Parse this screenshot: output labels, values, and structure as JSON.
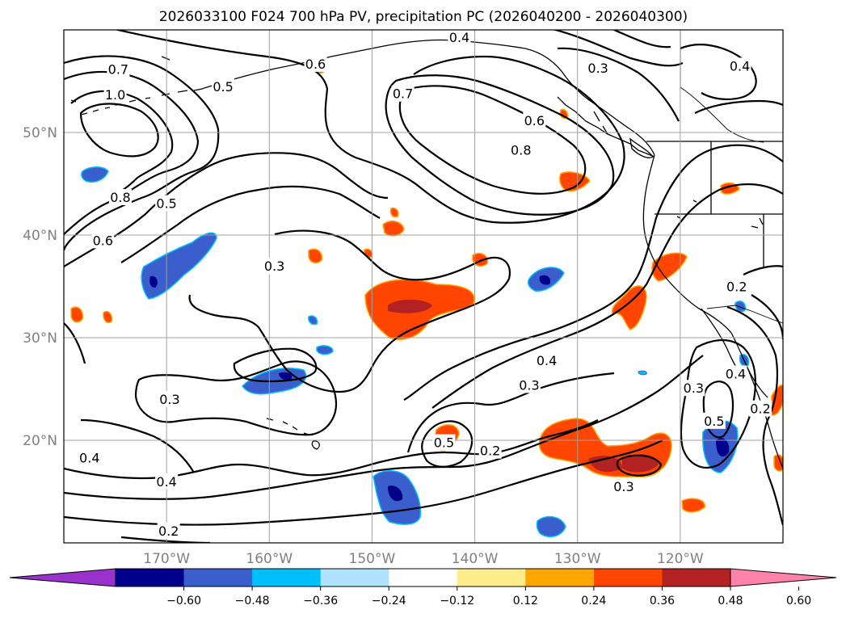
{
  "title": "2026033100 F024 700 hPa PV, precipitation PC (2026040200 - 2026040300)",
  "map": {
    "lon_range": [
      -180,
      -110
    ],
    "lat_range": [
      10,
      60
    ],
    "lat_ticks": [
      {
        "value": 50,
        "label": "50°N"
      },
      {
        "value": 40,
        "label": "40°N"
      },
      {
        "value": 30,
        "label": "30°N"
      },
      {
        "value": 20,
        "label": "20°N"
      }
    ],
    "lon_ticks": [
      {
        "value": -170,
        "label": "170°W"
      },
      {
        "value": -160,
        "label": "160°W"
      },
      {
        "value": -150,
        "label": "150°W"
      },
      {
        "value": -140,
        "label": "140°W"
      },
      {
        "value": -130,
        "label": "130°W"
      },
      {
        "value": -120,
        "label": "120°W"
      }
    ],
    "grid": true,
    "tick_label_color": "#808080"
  },
  "contour_labels": [
    {
      "text": "0.4",
      "lon": -141.5,
      "lat": 59.3
    },
    {
      "text": "0.6",
      "lon": -155.5,
      "lat": 56.7
    },
    {
      "text": "0.3",
      "lon": -128.0,
      "lat": 56.3
    },
    {
      "text": "0.4",
      "lon": -114.2,
      "lat": 56.5
    },
    {
      "text": "0.7",
      "lon": -174.7,
      "lat": 56.2
    },
    {
      "text": "0.5",
      "lon": -164.5,
      "lat": 54.5
    },
    {
      "text": "1.0",
      "lon": -175.0,
      "lat": 53.7
    },
    {
      "text": "0.7",
      "lon": -147.0,
      "lat": 53.8
    },
    {
      "text": "0.6",
      "lon": -134.2,
      "lat": 51.2
    },
    {
      "text": "0.8",
      "lon": -135.5,
      "lat": 48.3
    },
    {
      "text": "0.8",
      "lon": -174.5,
      "lat": 43.7
    },
    {
      "text": "0.5",
      "lon": -170.0,
      "lat": 43.1
    },
    {
      "text": "0.6",
      "lon": -176.2,
      "lat": 39.5
    },
    {
      "text": "0.3",
      "lon": -159.5,
      "lat": 37.0
    },
    {
      "text": "0.2",
      "lon": -114.5,
      "lat": 35.0
    },
    {
      "text": "0.4",
      "lon": -133.0,
      "lat": 27.8
    },
    {
      "text": "0.3",
      "lon": -134.7,
      "lat": 25.4
    },
    {
      "text": "0.3",
      "lon": -169.7,
      "lat": 24.0
    },
    {
      "text": "0.3",
      "lon": -118.7,
      "lat": 25.1
    },
    {
      "text": "0.4",
      "lon": -114.6,
      "lat": 26.5
    },
    {
      "text": "0.5",
      "lon": -116.7,
      "lat": 21.9
    },
    {
      "text": "0.2",
      "lon": -112.2,
      "lat": 23.1
    },
    {
      "text": "0.5",
      "lon": -143.0,
      "lat": 19.8
    },
    {
      "text": "0.2",
      "lon": -138.5,
      "lat": 19.0
    },
    {
      "text": "0.4",
      "lon": -177.5,
      "lat": 18.3
    },
    {
      "text": "0.4",
      "lon": -170.0,
      "lat": 16.0
    },
    {
      "text": "0.3",
      "lon": -125.5,
      "lat": 15.5
    },
    {
      "text": "0.2",
      "lon": -169.8,
      "lat": 11.2
    }
  ],
  "colorbar": {
    "colors": [
      "#9932cc",
      "#00008b",
      "#3a5fcd",
      "#00bfff",
      "#b0e2ff",
      "#ffffff",
      "#ffec8b",
      "#ffa500",
      "#ff4500",
      "#b22222",
      "#ff82ab"
    ],
    "tick_labels": [
      "−0.60",
      "−0.48",
      "−0.36",
      "−0.24",
      "−0.12",
      "0.12",
      "0.24",
      "0.36",
      "0.48",
      "0.60"
    ],
    "extend": "both"
  }
}
